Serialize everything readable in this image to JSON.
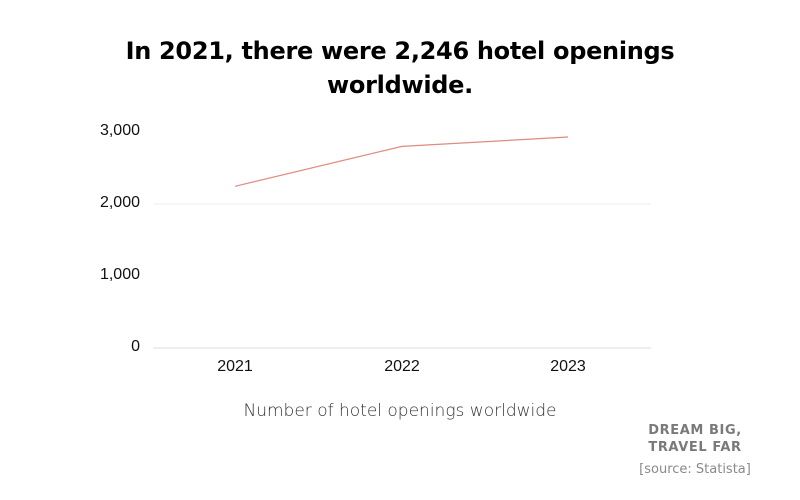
{
  "title": "In 2021, there were 2,246 hotel openings worldwide.",
  "xlabel": "Number of hotel openings worldwide",
  "brand": {
    "line1": "DREAM BIG,",
    "line2": "TRAVEL FAR"
  },
  "source": "[source: Statista]",
  "y_ticks": [
    "3,000",
    "2,000",
    "1,000",
    "0"
  ],
  "x_ticks": [
    "2021",
    "2022",
    "2023"
  ],
  "colors": {
    "line": "#e08a80",
    "grid": "#e6e6e6"
  },
  "chart_data": {
    "type": "line",
    "title": "In 2021, there were 2,246 hotel openings worldwide.",
    "xlabel": "Number of hotel openings worldwide",
    "ylabel": "",
    "categories": [
      "2021",
      "2022",
      "2023"
    ],
    "series": [
      {
        "name": "Hotel openings",
        "values": [
          2246,
          2800,
          2930
        ]
      }
    ],
    "ylim": [
      0,
      3000
    ],
    "yticks": [
      0,
      1000,
      2000,
      3000
    ],
    "grid": true,
    "legend": "none"
  }
}
